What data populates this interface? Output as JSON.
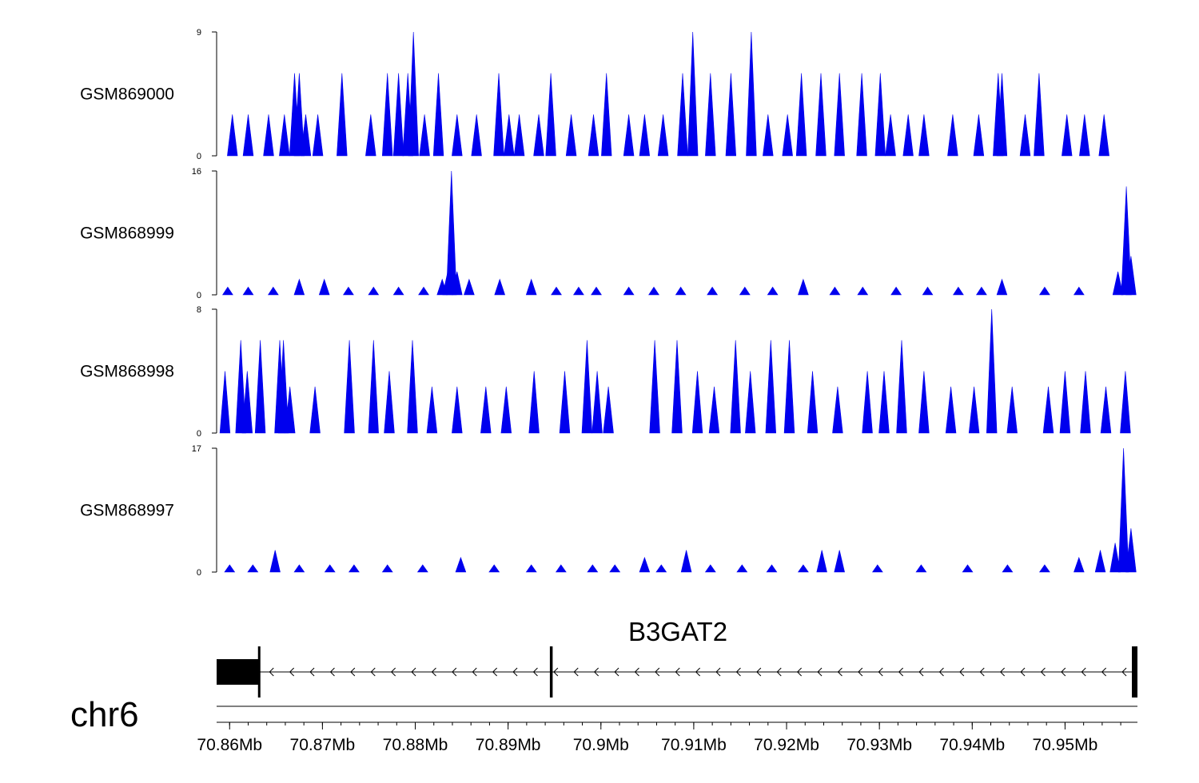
{
  "colors": {
    "signal": "#0000ee",
    "axis": "#000000",
    "gene": "#000000"
  },
  "chart_data": {
    "type": "area",
    "x_unit": "Mb",
    "xlim": [
      70.8586,
      70.9578
    ],
    "tracks": [
      {
        "name": "GSM869000",
        "ylim": [
          0,
          9
        ],
        "y_ticks": [
          "9",
          "0"
        ],
        "peaks": [
          [
            70.8603,
            3
          ],
          [
            70.862,
            3
          ],
          [
            70.8642,
            3
          ],
          [
            70.8659,
            3
          ],
          [
            70.867,
            6
          ],
          [
            70.8675,
            6
          ],
          [
            70.8682,
            3
          ],
          [
            70.8695,
            3
          ],
          [
            70.8721,
            6
          ],
          [
            70.8752,
            3
          ],
          [
            70.877,
            6
          ],
          [
            70.8782,
            6
          ],
          [
            70.8792,
            6
          ],
          [
            70.8798,
            9
          ],
          [
            70.881,
            3
          ],
          [
            70.8825,
            6
          ],
          [
            70.8845,
            3
          ],
          [
            70.8866,
            3
          ],
          [
            70.889,
            6
          ],
          [
            70.8901,
            3
          ],
          [
            70.8912,
            3
          ],
          [
            70.8933,
            3
          ],
          [
            70.8946,
            6
          ],
          [
            70.8968,
            3
          ],
          [
            70.8992,
            3
          ],
          [
            70.9006,
            6
          ],
          [
            70.903,
            3
          ],
          [
            70.9047,
            3
          ],
          [
            70.9067,
            3
          ],
          [
            70.9088,
            6
          ],
          [
            70.9099,
            9
          ],
          [
            70.9118,
            6
          ],
          [
            70.914,
            6
          ],
          [
            70.9162,
            9
          ],
          [
            70.918,
            3
          ],
          [
            70.9201,
            3
          ],
          [
            70.9216,
            6
          ],
          [
            70.9237,
            6
          ],
          [
            70.9257,
            6
          ],
          [
            70.9281,
            6
          ],
          [
            70.9301,
            6
          ],
          [
            70.9312,
            3
          ],
          [
            70.9331,
            3
          ],
          [
            70.9348,
            3
          ],
          [
            70.9379,
            3
          ],
          [
            70.9407,
            3
          ],
          [
            70.9428,
            6
          ],
          [
            70.9432,
            6
          ],
          [
            70.9457,
            3
          ],
          [
            70.9472,
            6
          ],
          [
            70.9502,
            3
          ],
          [
            70.9521,
            3
          ],
          [
            70.9542,
            3
          ]
        ]
      },
      {
        "name": "GSM868999",
        "ylim": [
          0,
          16
        ],
        "y_ticks": [
          "16",
          "0"
        ],
        "peaks": [
          [
            70.8598,
            1
          ],
          [
            70.862,
            1
          ],
          [
            70.8647,
            1
          ],
          [
            70.8675,
            2
          ],
          [
            70.8702,
            2
          ],
          [
            70.8728,
            1
          ],
          [
            70.8755,
            1
          ],
          [
            70.8782,
            1
          ],
          [
            70.8809,
            1
          ],
          [
            70.8829,
            2
          ],
          [
            70.8835,
            3
          ],
          [
            70.8839,
            16
          ],
          [
            70.8845,
            3
          ],
          [
            70.8858,
            2
          ],
          [
            70.8891,
            2
          ],
          [
            70.8925,
            2
          ],
          [
            70.8952,
            1
          ],
          [
            70.8976,
            1
          ],
          [
            70.8995,
            1
          ],
          [
            70.903,
            1
          ],
          [
            70.9057,
            1
          ],
          [
            70.9086,
            1
          ],
          [
            70.912,
            1
          ],
          [
            70.9155,
            1
          ],
          [
            70.9185,
            1
          ],
          [
            70.9218,
            2
          ],
          [
            70.9252,
            1
          ],
          [
            70.9282,
            1
          ],
          [
            70.9318,
            1
          ],
          [
            70.9352,
            1
          ],
          [
            70.9385,
            1
          ],
          [
            70.941,
            1
          ],
          [
            70.9432,
            2
          ],
          [
            70.9478,
            1
          ],
          [
            70.9515,
            1
          ],
          [
            70.9557,
            3
          ],
          [
            70.9566,
            14
          ],
          [
            70.9571,
            5
          ]
        ]
      },
      {
        "name": "GSM868998",
        "ylim": [
          0,
          8
        ],
        "y_ticks": [
          "8",
          "0"
        ],
        "peaks": [
          [
            70.8595,
            4
          ],
          [
            70.8612,
            6
          ],
          [
            70.8619,
            4
          ],
          [
            70.8633,
            6
          ],
          [
            70.8654,
            6
          ],
          [
            70.8658,
            6
          ],
          [
            70.8665,
            3
          ],
          [
            70.8692,
            3
          ],
          [
            70.8729,
            6
          ],
          [
            70.8755,
            6
          ],
          [
            70.8772,
            4
          ],
          [
            70.8797,
            6
          ],
          [
            70.8818,
            3
          ],
          [
            70.8845,
            3
          ],
          [
            70.8876,
            3
          ],
          [
            70.8898,
            3
          ],
          [
            70.8928,
            4
          ],
          [
            70.8961,
            4
          ],
          [
            70.8985,
            6
          ],
          [
            70.8996,
            4
          ],
          [
            70.9008,
            3
          ],
          [
            70.9058,
            6
          ],
          [
            70.9082,
            6
          ],
          [
            70.9104,
            4
          ],
          [
            70.9122,
            3
          ],
          [
            70.9145,
            6
          ],
          [
            70.9161,
            4
          ],
          [
            70.9183,
            6
          ],
          [
            70.9203,
            6
          ],
          [
            70.9228,
            4
          ],
          [
            70.9255,
            3
          ],
          [
            70.9287,
            4
          ],
          [
            70.9305,
            4
          ],
          [
            70.9324,
            6
          ],
          [
            70.9348,
            4
          ],
          [
            70.9377,
            3
          ],
          [
            70.9402,
            3
          ],
          [
            70.9421,
            8
          ],
          [
            70.9443,
            3
          ],
          [
            70.9482,
            3
          ],
          [
            70.95,
            4
          ],
          [
            70.9522,
            4
          ],
          [
            70.9544,
            3
          ],
          [
            70.9565,
            4
          ]
        ]
      },
      {
        "name": "GSM868997",
        "ylim": [
          0,
          17
        ],
        "y_ticks": [
          "17",
          "0"
        ],
        "peaks": [
          [
            70.86,
            1
          ],
          [
            70.8625,
            1
          ],
          [
            70.8649,
            3
          ],
          [
            70.8675,
            1
          ],
          [
            70.8708,
            1
          ],
          [
            70.8734,
            1
          ],
          [
            70.877,
            1
          ],
          [
            70.8808,
            1
          ],
          [
            70.8849,
            2
          ],
          [
            70.8885,
            1
          ],
          [
            70.8925,
            1
          ],
          [
            70.8957,
            1
          ],
          [
            70.8991,
            1
          ],
          [
            70.9015,
            1
          ],
          [
            70.9047,
            2
          ],
          [
            70.9065,
            1
          ],
          [
            70.9092,
            3
          ],
          [
            70.9118,
            1
          ],
          [
            70.9152,
            1
          ],
          [
            70.9184,
            1
          ],
          [
            70.9218,
            1
          ],
          [
            70.9238,
            3
          ],
          [
            70.9257,
            3
          ],
          [
            70.9298,
            1
          ],
          [
            70.9345,
            1
          ],
          [
            70.9395,
            1
          ],
          [
            70.9438,
            1
          ],
          [
            70.9478,
            1
          ],
          [
            70.9515,
            2
          ],
          [
            70.9538,
            3
          ],
          [
            70.9554,
            4
          ],
          [
            70.9563,
            17
          ],
          [
            70.9571,
            6
          ]
        ]
      }
    ],
    "gene": {
      "name": "B3GAT2",
      "strand": "-",
      "start": 70.8586,
      "end": 70.9578,
      "exons": [
        [
          70.8586,
          70.8631
        ],
        [
          70.8945,
          70.8948
        ],
        [
          70.9572,
          70.9578
        ]
      ]
    },
    "genome_axis": {
      "chromosome": "chr6",
      "ticks": [
        {
          "pos": 70.86,
          "label": "70.86Mb"
        },
        {
          "pos": 70.87,
          "label": "70.87Mb"
        },
        {
          "pos": 70.88,
          "label": "70.88Mb"
        },
        {
          "pos": 70.89,
          "label": "70.89Mb"
        },
        {
          "pos": 70.9,
          "label": "70.9Mb"
        },
        {
          "pos": 70.91,
          "label": "70.91Mb"
        },
        {
          "pos": 70.92,
          "label": "70.92Mb"
        },
        {
          "pos": 70.93,
          "label": "70.93Mb"
        },
        {
          "pos": 70.94,
          "label": "70.94Mb"
        },
        {
          "pos": 70.95,
          "label": "70.95Mb"
        }
      ]
    }
  }
}
